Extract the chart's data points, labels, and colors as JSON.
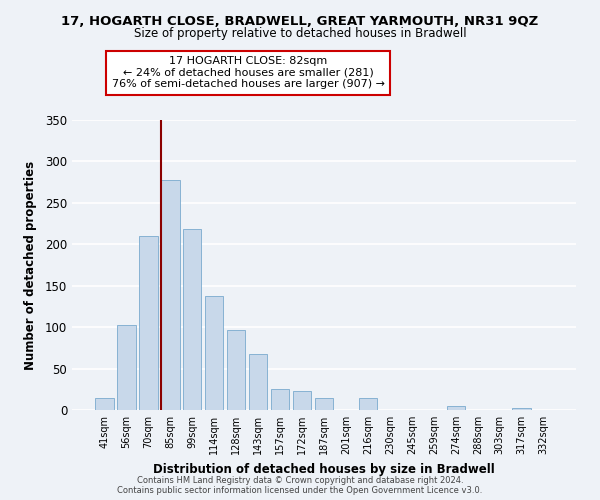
{
  "title_line1": "17, HOGARTH CLOSE, BRADWELL, GREAT YARMOUTH, NR31 9QZ",
  "title_line2": "Size of property relative to detached houses in Bradwell",
  "xlabel": "Distribution of detached houses by size in Bradwell",
  "ylabel": "Number of detached properties",
  "bar_labels": [
    "41sqm",
    "56sqm",
    "70sqm",
    "85sqm",
    "99sqm",
    "114sqm",
    "128sqm",
    "143sqm",
    "157sqm",
    "172sqm",
    "187sqm",
    "201sqm",
    "216sqm",
    "230sqm",
    "245sqm",
    "259sqm",
    "274sqm",
    "288sqm",
    "303sqm",
    "317sqm",
    "332sqm"
  ],
  "bar_values": [
    15,
    103,
    210,
    277,
    218,
    137,
    97,
    68,
    25,
    23,
    15,
    0,
    15,
    0,
    0,
    0,
    5,
    0,
    0,
    3,
    0
  ],
  "bar_color": "#c8d8ea",
  "bar_edge_color": "#7aaace",
  "vline_color": "#8b0000",
  "annotation_line1": "17 HOGARTH CLOSE: 82sqm",
  "annotation_line2": "← 24% of detached houses are smaller (281)",
  "annotation_line3": "76% of semi-detached houses are larger (907) →",
  "annotation_box_color": "white",
  "annotation_box_edge": "#cc0000",
  "ylim": [
    0,
    350
  ],
  "yticks": [
    0,
    50,
    100,
    150,
    200,
    250,
    300,
    350
  ],
  "footer_line1": "Contains HM Land Registry data © Crown copyright and database right 2024.",
  "footer_line2": "Contains public sector information licensed under the Open Government Licence v3.0.",
  "bg_color": "#eef2f7",
  "grid_color": "#ffffff"
}
